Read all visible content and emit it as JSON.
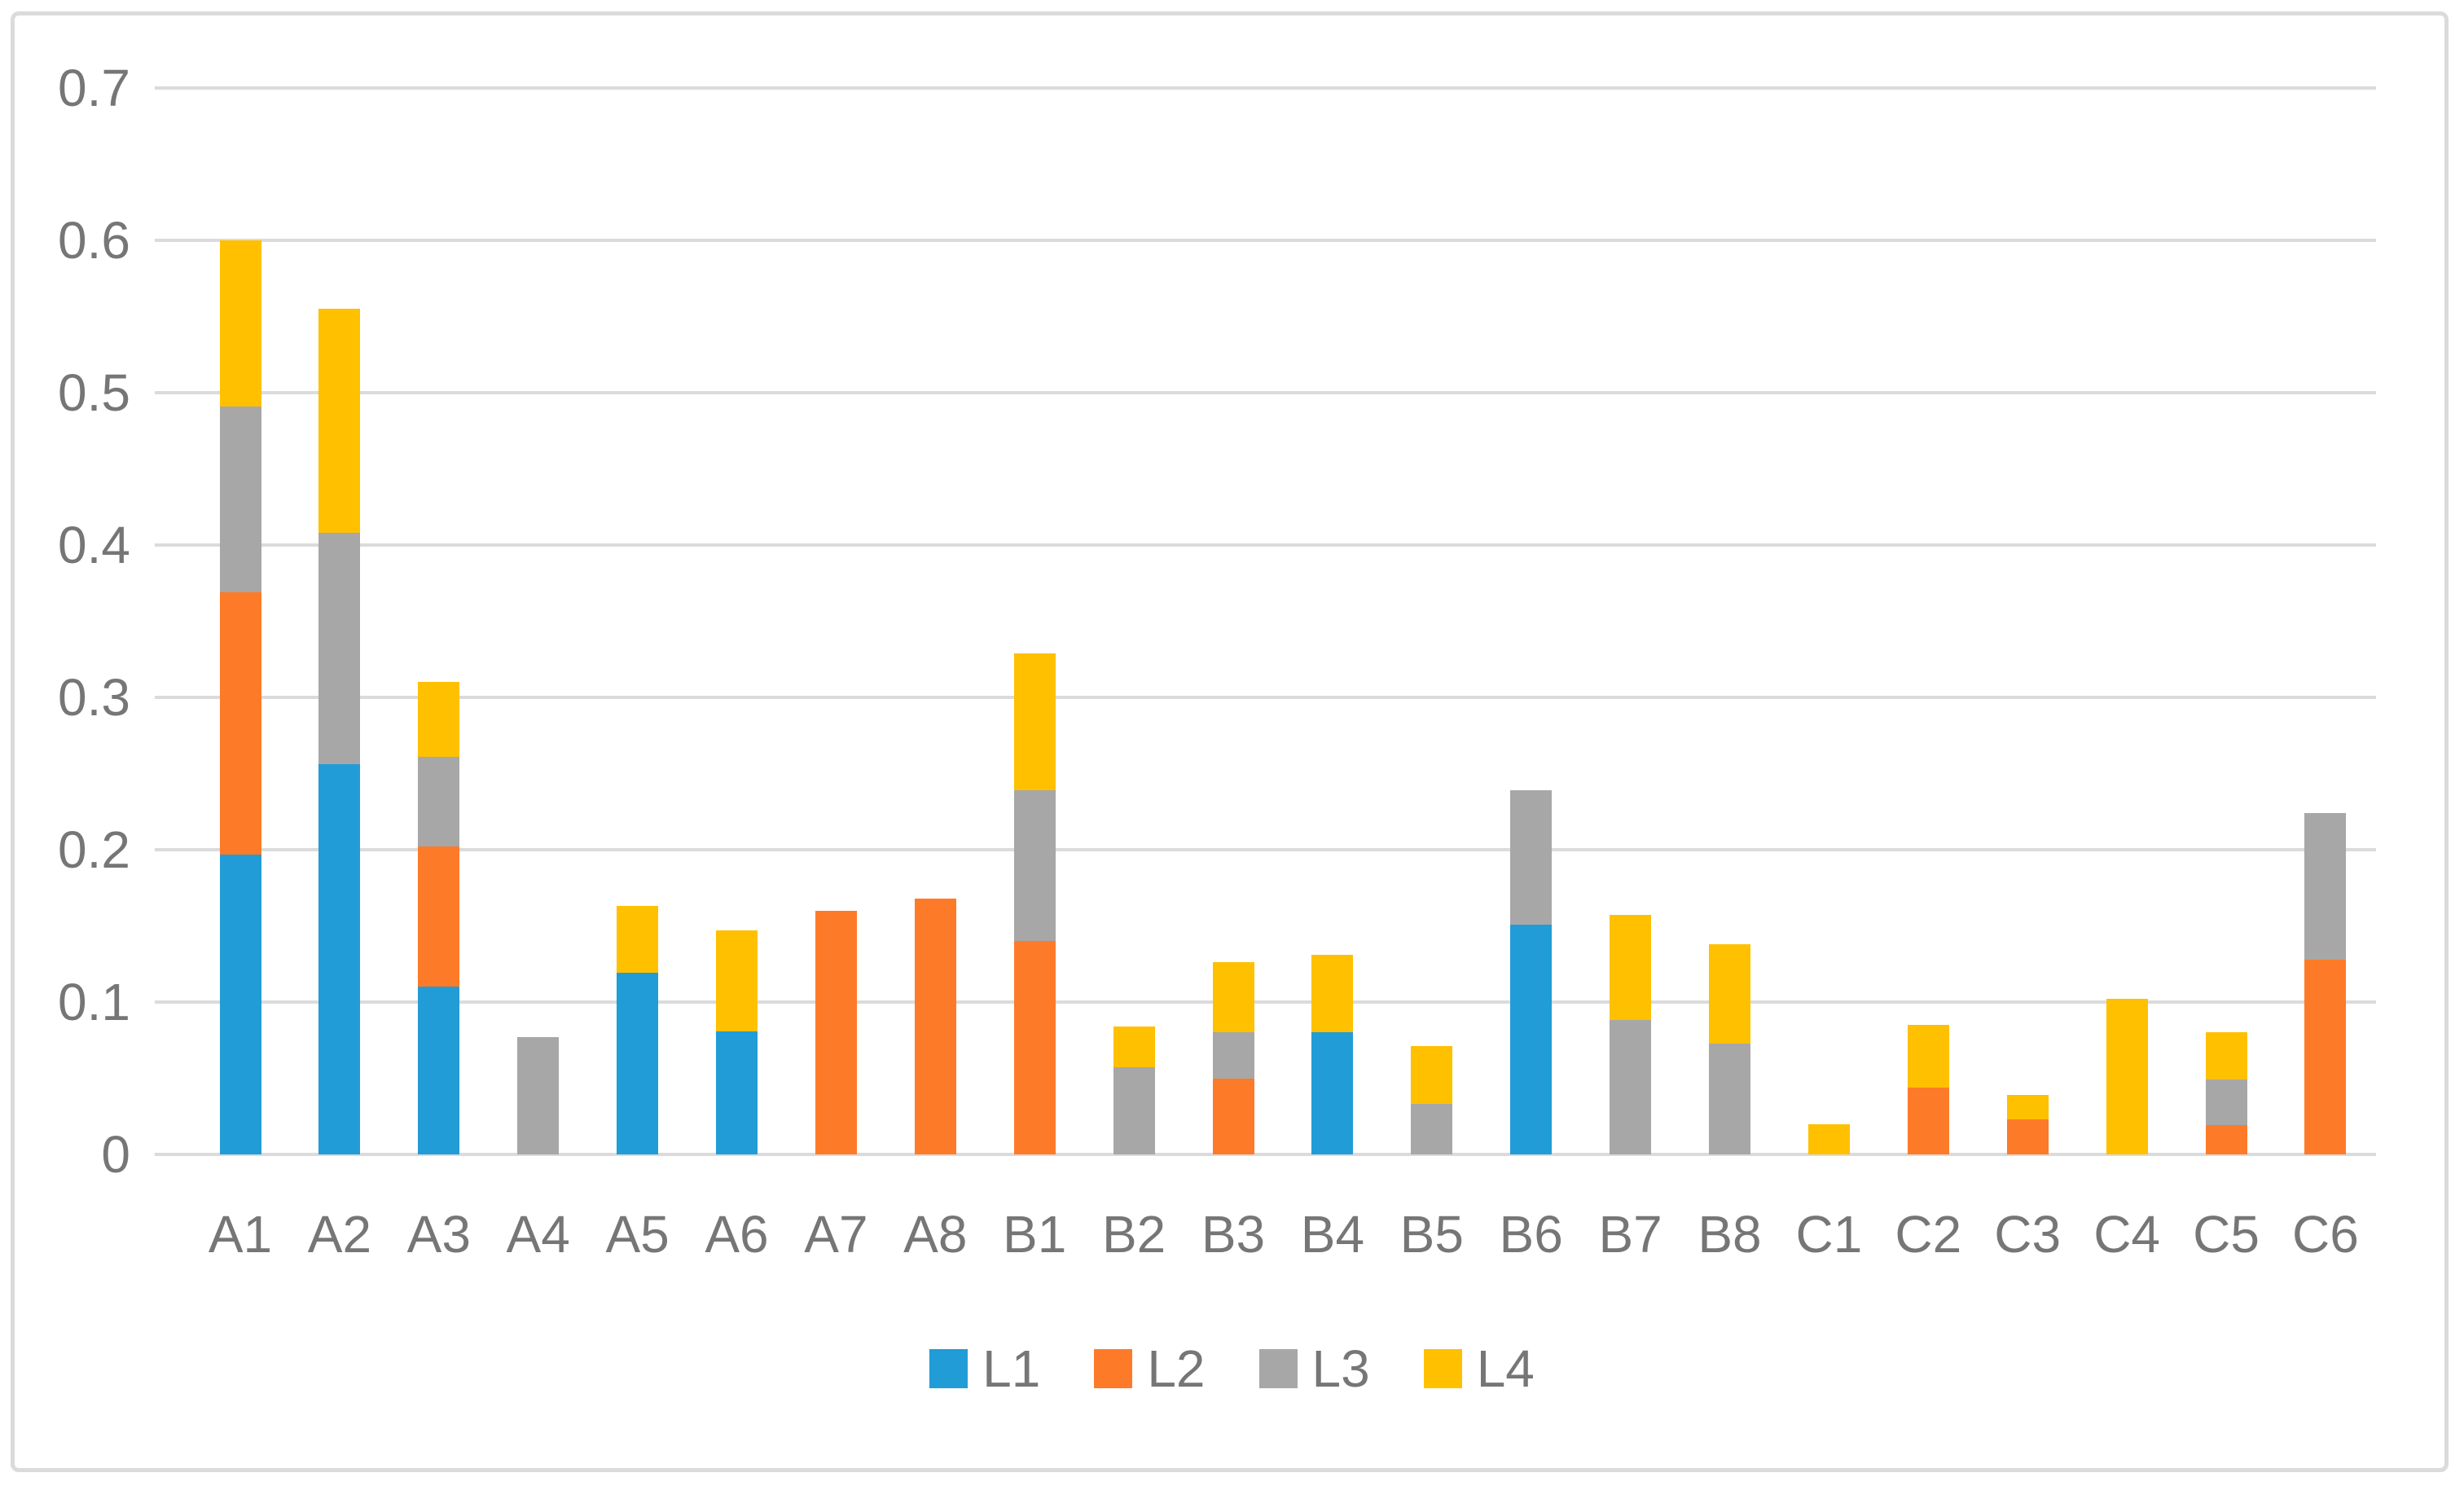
{
  "chart_data": {
    "type": "bar",
    "subtype": "stacked-vertical",
    "title": "",
    "xlabel": "",
    "ylabel": "",
    "ylim": [
      0,
      0.7
    ],
    "ytick_interval": 0.1,
    "ytick_labels": [
      "0",
      "0.1",
      "0.2",
      "0.3",
      "0.4",
      "0.5",
      "0.6",
      "0.7"
    ],
    "grid": true,
    "legend_position": "bottom",
    "categories": [
      "A1",
      "A2",
      "A3",
      "A4",
      "A5",
      "A6",
      "A7",
      "A8",
      "B1",
      "B2",
      "B3",
      "B4",
      "B5",
      "B6",
      "B7",
      "B8",
      "C1",
      "C2",
      "C3",
      "C4",
      "C5",
      "C6"
    ],
    "series": [
      {
        "name": "L1",
        "color": "#219cd7",
        "values": [
          0.197,
          0.256,
          0.11,
          0,
          0.119,
          0.081,
          0,
          0,
          0,
          0,
          0,
          0.08,
          0,
          0.151,
          0,
          0,
          0,
          0,
          0,
          0,
          0,
          0
        ]
      },
      {
        "name": "L2",
        "color": "#fd7b28",
        "values": [
          0.172,
          0,
          0.092,
          0,
          0,
          0,
          0.16,
          0.168,
          0.14,
          0,
          0.05,
          0,
          0,
          0,
          0,
          0,
          0,
          0.044,
          0.023,
          0,
          0.019,
          0.128
        ]
      },
      {
        "name": "L3",
        "color": "#a7a7a7",
        "values": [
          0.122,
          0.152,
          0.059,
          0.077,
          0,
          0,
          0,
          0,
          0.099,
          0.057,
          0.03,
          0,
          0.033,
          0.088,
          0.088,
          0.073,
          0,
          0,
          0,
          0,
          0.03,
          0.096
        ]
      },
      {
        "name": "L4",
        "color": "#ffc000",
        "values": [
          0.109,
          0.147,
          0.049,
          0,
          0.044,
          0.066,
          0,
          0,
          0.09,
          0.027,
          0.046,
          0.051,
          0.038,
          0,
          0.069,
          0.065,
          0.02,
          0.041,
          0.016,
          0.102,
          0.031,
          0
        ]
      }
    ],
    "colors": {
      "gridline": "#dbdbdb",
      "axis_text": "#767676",
      "border": "#dbdbdb",
      "background": "#ffffff"
    }
  }
}
